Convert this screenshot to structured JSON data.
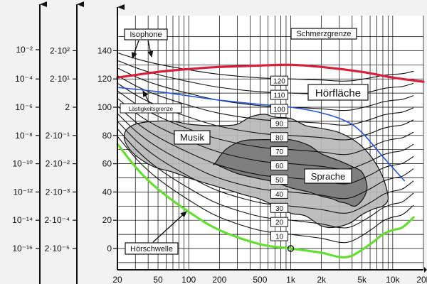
{
  "chart_data": {
    "type": "line",
    "title": "",
    "xlabel": "",
    "ylabel": "",
    "x_scale": "log",
    "xlim": [
      20,
      20000
    ],
    "ylim": [
      -10,
      150
    ],
    "x_ticks": [
      {
        "v": 20,
        "label": "20"
      },
      {
        "v": 50,
        "label": "50"
      },
      {
        "v": 100,
        "label": "100"
      },
      {
        "v": 200,
        "label": "200"
      },
      {
        "v": 500,
        "label": "500"
      },
      {
        "v": 1000,
        "label": "1k"
      },
      {
        "v": 2000,
        "label": "2k"
      },
      {
        "v": 5000,
        "label": "5k"
      },
      {
        "v": 10000,
        "label": "10k"
      },
      {
        "v": 20000,
        "label": "20k"
      }
    ],
    "y_ticks": [
      0,
      20,
      40,
      60,
      80,
      100,
      120,
      140
    ],
    "intensity_axis": [
      {
        "y": 120,
        "label": "10⁻⁴"
      },
      {
        "y": 100,
        "label": "10⁻⁶"
      },
      {
        "y": 80,
        "label": "10⁻⁸"
      },
      {
        "y": 60,
        "label": "10⁻¹⁰"
      },
      {
        "y": 40,
        "label": "10⁻¹²"
      },
      {
        "y": 20,
        "label": "10⁻¹⁴"
      },
      {
        "y": 0,
        "label": "10⁻¹⁶"
      }
    ],
    "intensity_axis_top": "10⁻²",
    "pressure_axis": [
      {
        "y": 140,
        "label": "2·10²"
      },
      {
        "y": 120,
        "label": "2·10¹"
      },
      {
        "y": 100,
        "label": "2"
      },
      {
        "y": 80,
        "label": "2·10⁻¹"
      },
      {
        "y": 60,
        "label": "2·10⁻²"
      },
      {
        "y": 40,
        "label": "2·10⁻³"
      },
      {
        "y": 20,
        "label": "2·10⁻⁴"
      },
      {
        "y": 0,
        "label": "2·10⁻⁵"
      }
    ],
    "isophone_levels": [
      "10",
      "20",
      "30",
      "40",
      "50",
      "60",
      "70",
      "80",
      "90",
      "100",
      "110",
      "120"
    ],
    "isophone_shape": {
      "x": [
        20,
        31.5,
        50,
        100,
        200,
        500,
        1000,
        2000,
        3000,
        4000,
        6000,
        8000,
        10000,
        12500,
        16000
      ],
      "offsets": [
        74,
        56,
        42,
        26,
        13,
        3,
        0,
        -3,
        -6,
        -5,
        3,
        10,
        13,
        15,
        22
      ]
    },
    "series": [
      {
        "name": "Schmerzgrenze",
        "color": "#d81e3a",
        "x": [
          20,
          50,
          100,
          200,
          500,
          1000,
          2000,
          5000,
          10000,
          20000
        ],
        "y": [
          121,
          125,
          127,
          128.5,
          129.5,
          130,
          128.5,
          125,
          121,
          118
        ]
      },
      {
        "name": "Lästigkeitsgrenze",
        "color": "#2255dd",
        "x": [
          20,
          50,
          100,
          200,
          500,
          1000,
          2000,
          3500,
          5000,
          8000,
          13000
        ],
        "y": [
          114,
          111,
          108,
          105,
          102,
          100,
          96,
          90,
          82,
          65,
          48
        ]
      },
      {
        "name": "Hörschwelle",
        "color": "#66dd33",
        "x": [
          20,
          31.5,
          50,
          100,
          200,
          500,
          1000,
          2000,
          3000,
          4000,
          6000,
          8000,
          10000,
          12500,
          16000
        ],
        "y": [
          74,
          56,
          42,
          26,
          13,
          3,
          0,
          -3,
          -6,
          -5,
          3,
          10,
          13,
          15,
          22
        ]
      }
    ],
    "regions": [
      {
        "name": "Musik",
        "color": "#b8b8b8",
        "x": [
          24,
          30,
          45,
          70,
          100,
          150,
          220,
          300,
          400,
          550,
          700,
          1000,
          1400,
          2000,
          3000,
          4500,
          6000,
          7500,
          8500,
          9000,
          8000,
          6500,
          5000,
          3800,
          2700,
          2000,
          1400,
          1000,
          700,
          500,
          350,
          230,
          150,
          100,
          70,
          45,
          30,
          24
        ],
        "y": [
          83,
          88,
          90,
          90,
          88,
          87,
          87,
          88,
          93,
          95,
          93,
          92,
          87,
          85,
          82,
          75,
          66,
          55,
          45,
          35,
          30,
          28,
          24,
          18,
          15,
          16,
          23,
          25,
          30,
          35,
          38,
          42,
          46,
          50,
          54,
          58,
          66,
          75
        ]
      },
      {
        "name": "Sprache",
        "color": "#7a7a7a",
        "x": [
          180,
          230,
          330,
          480,
          700,
          1000,
          1500,
          2000,
          3000,
          4000,
          5000,
          5600,
          5200,
          4300,
          3500,
          3000,
          2600,
          2000,
          1500,
          1000,
          700,
          450,
          300,
          220,
          180
        ],
        "y": [
          60,
          70,
          76,
          77,
          77,
          77,
          73,
          67,
          62,
          58,
          54,
          44,
          36,
          30,
          32,
          33,
          35,
          37,
          40,
          43,
          47,
          50,
          53,
          57,
          60
        ]
      }
    ],
    "annotations": [
      "Isophone",
      "Schmerzgrenze",
      "Lästigkeitsgrenze",
      "Hörfläche",
      "Musik",
      "Sprache",
      "Hörschwelle"
    ],
    "grid": true
  }
}
